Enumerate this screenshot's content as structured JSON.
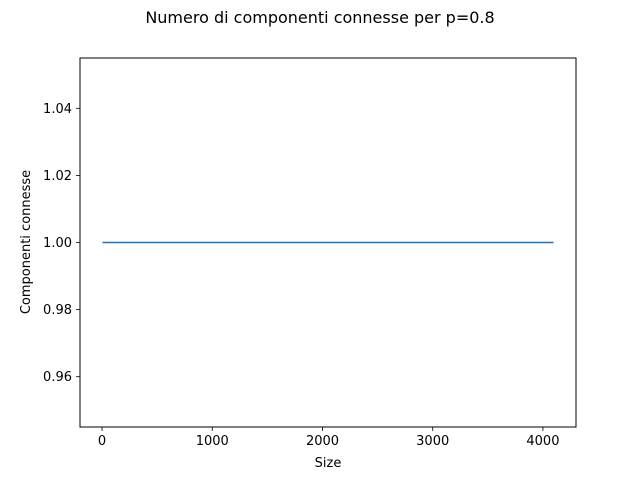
{
  "chart_data": {
    "type": "line",
    "title": "Numero di componenti connesse per p=0.8",
    "xlabel": "Size",
    "ylabel": "Componenti connesse",
    "xlim": [
      -200,
      4300
    ],
    "ylim": [
      0.945,
      1.055
    ],
    "xticks": [
      0,
      1000,
      2000,
      3000,
      4000
    ],
    "xtick_labels": [
      "0",
      "1000",
      "2000",
      "3000",
      "4000"
    ],
    "yticks": [
      0.96,
      0.98,
      1.0,
      1.02,
      1.04
    ],
    "ytick_labels": [
      "0.96",
      "0.98",
      "1.00",
      "1.02",
      "1.04"
    ],
    "grid": false,
    "series": [
      {
        "color": "#1f77b4",
        "x": [
          4,
          4096
        ],
        "y": [
          1.0,
          1.0
        ]
      }
    ]
  }
}
